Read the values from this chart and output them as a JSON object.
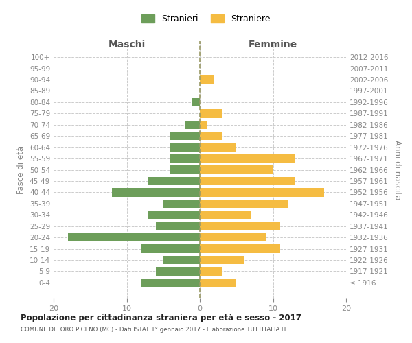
{
  "age_groups": [
    "100+",
    "95-99",
    "90-94",
    "85-89",
    "80-84",
    "75-79",
    "70-74",
    "65-69",
    "60-64",
    "55-59",
    "50-54",
    "45-49",
    "40-44",
    "35-39",
    "30-34",
    "25-29",
    "20-24",
    "15-19",
    "10-14",
    "5-9",
    "0-4"
  ],
  "birth_years": [
    "≤ 1916",
    "1917-1921",
    "1922-1926",
    "1927-1931",
    "1932-1936",
    "1937-1941",
    "1942-1946",
    "1947-1951",
    "1952-1956",
    "1957-1961",
    "1962-1966",
    "1967-1971",
    "1972-1976",
    "1977-1981",
    "1982-1986",
    "1987-1991",
    "1992-1996",
    "1997-2001",
    "2002-2006",
    "2007-2011",
    "2012-2016"
  ],
  "maschi": [
    0,
    0,
    0,
    0,
    1,
    0,
    2,
    4,
    4,
    4,
    4,
    7,
    12,
    5,
    7,
    6,
    18,
    8,
    5,
    6,
    8
  ],
  "femmine": [
    0,
    0,
    2,
    0,
    0,
    3,
    1,
    3,
    5,
    13,
    10,
    13,
    17,
    12,
    7,
    11,
    9,
    11,
    6,
    3,
    5
  ],
  "color_maschi": "#6d9e5a",
  "color_femmine": "#f5bc42",
  "title": "Popolazione per cittadinanza straniera per età e sesso - 2017",
  "subtitle": "COMUNE DI LORO PICENO (MC) - Dati ISTAT 1° gennaio 2017 - Elaborazione TUTTITALIA.IT",
  "xlabel_left": "Maschi",
  "xlabel_right": "Femmine",
  "ylabel_left": "Fasce di età",
  "ylabel_right": "Anni di nascita",
  "xlim": 20,
  "legend_stranieri": "Stranieri",
  "legend_straniere": "Straniere",
  "bg_color": "#ffffff",
  "grid_color": "#cccccc",
  "text_color": "#888888",
  "dashed_line_color": "#999966"
}
